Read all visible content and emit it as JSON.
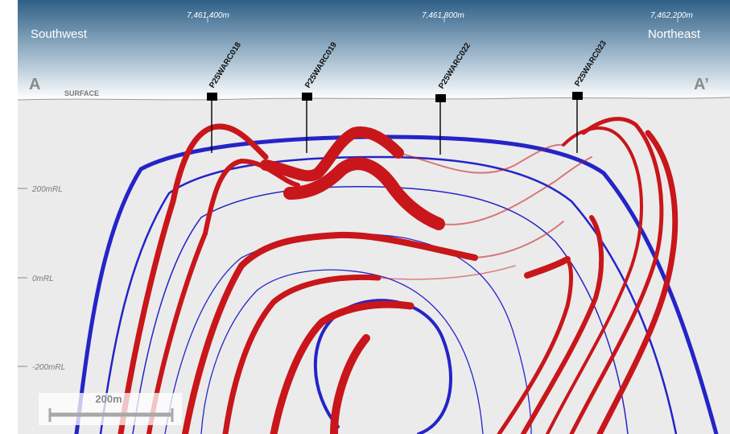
{
  "header": {
    "left_direction": "Southwest",
    "right_direction": "Northeast",
    "section_start": "A",
    "section_end": "A’",
    "surface_label": "SURFACE"
  },
  "eastings": [
    "7,461,400m",
    "7,461,800m",
    "7,462,200m"
  ],
  "elevations": [
    "200mRL",
    "0mRL",
    "-200mRL"
  ],
  "drillholes": [
    {
      "id": "P25WARC018"
    },
    {
      "id": "P25WARC019"
    },
    {
      "id": "P25WARC022"
    },
    {
      "id": "P25WARC023"
    }
  ],
  "scale_bar": {
    "label": "200m"
  },
  "colors": {
    "sky_top": "#2f5f86",
    "sky_bottom": "#ffffff",
    "ground": "#ebebeb",
    "red_unit": "#c8161b",
    "blue_unit": "#2424c8",
    "collar": "#000000"
  }
}
